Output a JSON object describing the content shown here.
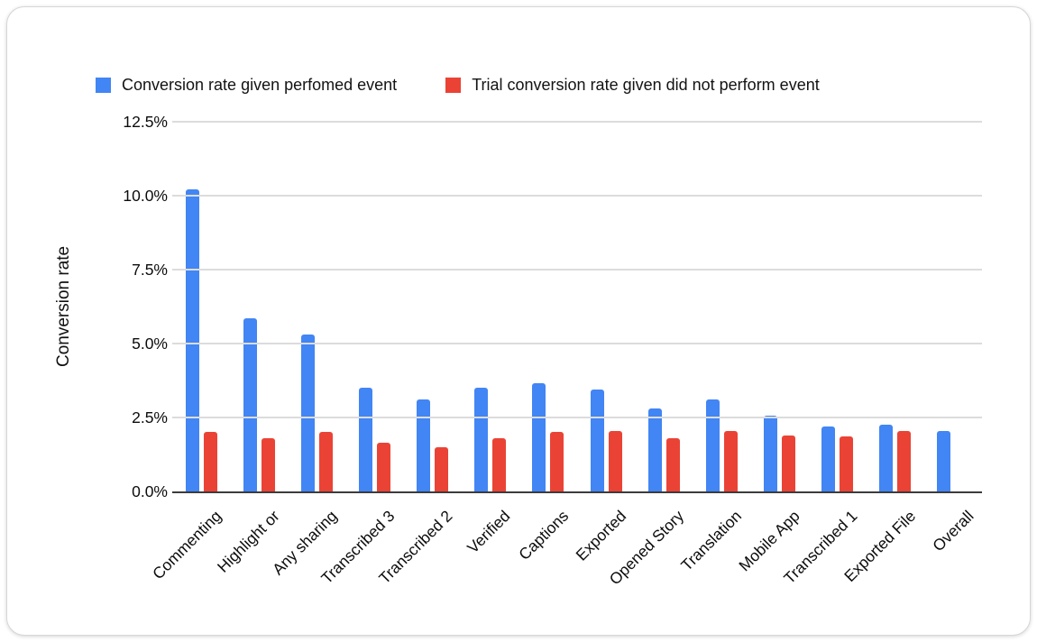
{
  "legend": {
    "items": [
      {
        "label": "Conversion rate given perfomed event",
        "color": "#4285F4"
      },
      {
        "label": "Trial conversion rate given did not perform event",
        "color": "#EA4335"
      }
    ]
  },
  "chart_data": {
    "type": "bar",
    "title": "",
    "xlabel": "",
    "ylabel": "Conversion rate",
    "ylim": [
      0,
      12.5
    ],
    "yticks": [
      "0.0%",
      "2.5%",
      "5.0%",
      "7.5%",
      "10.0%",
      "12.5%"
    ],
    "grid": true,
    "legend_position": "top",
    "categories": [
      "Commenting",
      "Highlight or",
      "Any sharing",
      "Transcribed 3",
      "Transcribed 2",
      "Verified",
      "Captions",
      "Exported",
      "Opened Story",
      "Translation",
      "Mobile App",
      "Transcribed 1",
      "Exported File",
      "Overall"
    ],
    "series": [
      {
        "name": "Conversion rate given perfomed event",
        "color": "#4285F4",
        "values": [
          10.2,
          5.85,
          5.3,
          3.5,
          3.1,
          3.5,
          3.65,
          3.45,
          2.8,
          3.1,
          2.55,
          2.2,
          2.25,
          2.05
        ]
      },
      {
        "name": "Trial conversion rate given did not perform event",
        "color": "#EA4335",
        "values": [
          2.0,
          1.8,
          2.0,
          1.65,
          1.5,
          1.8,
          2.0,
          2.05,
          1.8,
          2.05,
          1.9,
          1.85,
          2.05,
          null
        ]
      }
    ],
    "colors": {
      "gridline": "#dcdcdc",
      "axis_line": "#3c3c3c",
      "label_text": "#0c0c0c"
    }
  }
}
